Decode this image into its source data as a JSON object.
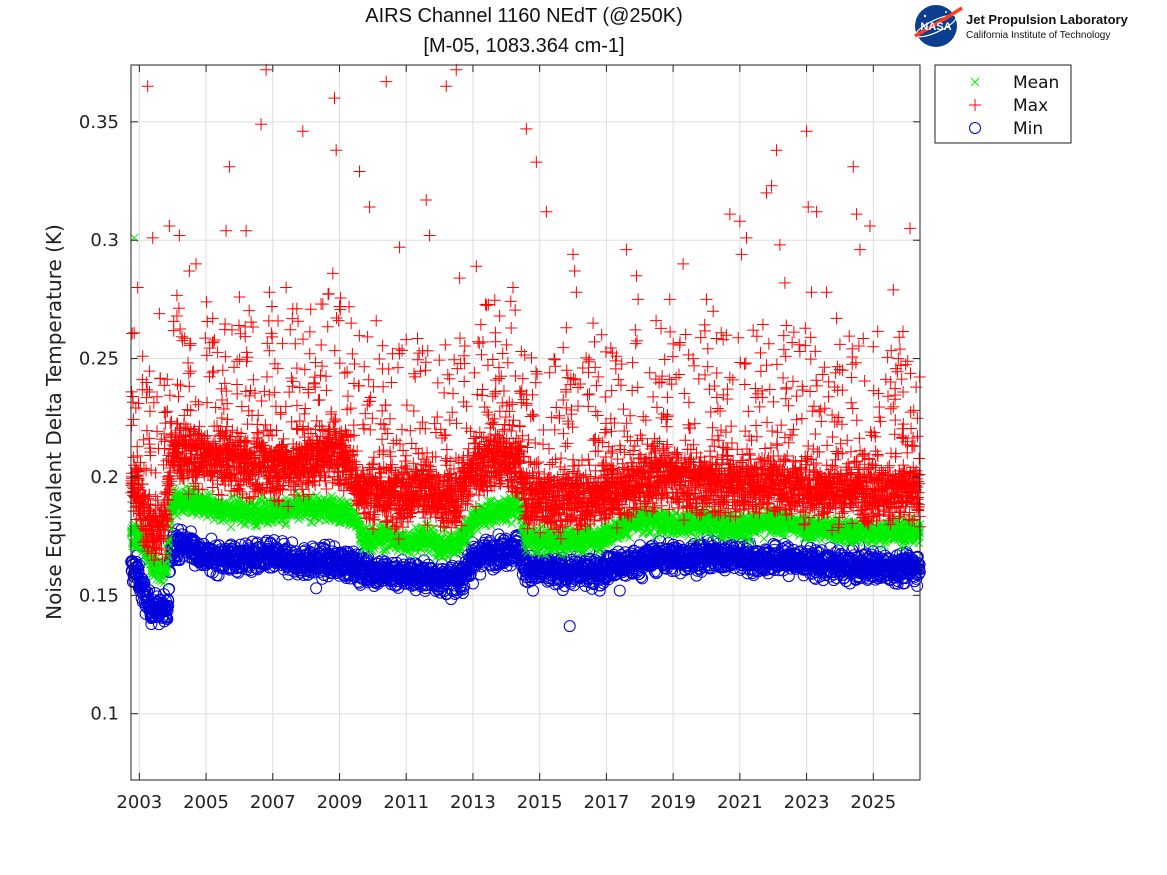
{
  "colors": {
    "mean": "#00ee00",
    "max": "#ff0000",
    "min": "#0000dd",
    "grid": "#dddddd",
    "axis": "#222222"
  },
  "logo": {
    "badge": "NASA",
    "line1": "Jet Propulsion Laboratory",
    "line2": "California Institute of Technology"
  },
  "chart_data": {
    "type": "scatter",
    "title": [
      "AIRS Channel 1160 NEdT (@250K)",
      "[M-05, 1083.364 cm-1]"
    ],
    "xlabel": "",
    "ylabel": "Noise Equivalent Delta Temperature (K)",
    "xlim": [
      2002.75,
      2026.4
    ],
    "ylim": [
      0.072,
      0.374
    ],
    "xticks": [
      2003,
      2005,
      2007,
      2009,
      2011,
      2013,
      2015,
      2017,
      2019,
      2021,
      2023,
      2025
    ],
    "xtick_labels": [
      "2003",
      "2005",
      "2007",
      "2009",
      "2011",
      "2013",
      "2015",
      "2017",
      "2019",
      "2021",
      "2023",
      "2025"
    ],
    "yticks": [
      0.1,
      0.15,
      0.2,
      0.25,
      0.3,
      0.35
    ],
    "ytick_labels": [
      "0.1",
      "0.15",
      "0.2",
      "0.25",
      "0.3",
      "0.35"
    ],
    "grid": true,
    "legend_position": "outside-top-right",
    "legend": [
      "Mean",
      "Max",
      "Min"
    ],
    "series": [
      {
        "name": "Mean",
        "marker": "x",
        "trend": [
          [
            2002.75,
            0.176
          ],
          [
            2002.95,
            0.175
          ],
          [
            2003.2,
            0.17
          ],
          [
            2003.4,
            0.162
          ],
          [
            2003.8,
            0.159
          ],
          [
            2003.95,
            0.189
          ],
          [
            2004.5,
            0.19
          ],
          [
            2005.5,
            0.186
          ],
          [
            2006.5,
            0.185
          ],
          [
            2007.5,
            0.186
          ],
          [
            2008.2,
            0.187
          ],
          [
            2008.8,
            0.186
          ],
          [
            2009.2,
            0.185
          ],
          [
            2009.5,
            0.182
          ],
          [
            2009.7,
            0.173
          ],
          [
            2010.3,
            0.175
          ],
          [
            2011.0,
            0.172
          ],
          [
            2011.5,
            0.175
          ],
          [
            2012.0,
            0.171
          ],
          [
            2012.5,
            0.171
          ],
          [
            2013.0,
            0.182
          ],
          [
            2013.5,
            0.185
          ],
          [
            2014.0,
            0.186
          ],
          [
            2014.4,
            0.188
          ],
          [
            2014.55,
            0.174
          ],
          [
            2015.0,
            0.173
          ],
          [
            2016.0,
            0.173
          ],
          [
            2017.0,
            0.175
          ],
          [
            2017.5,
            0.179
          ],
          [
            2018.0,
            0.182
          ],
          [
            2019.0,
            0.18
          ],
          [
            2020.0,
            0.181
          ],
          [
            2021.0,
            0.179
          ],
          [
            2022.0,
            0.181
          ],
          [
            2023.0,
            0.179
          ],
          [
            2024.0,
            0.177
          ],
          [
            2025.0,
            0.177
          ],
          [
            2026.4,
            0.177
          ]
        ],
        "spread": 0.0025,
        "points_per_year": 150,
        "outliers": [
          [
            2002.85,
            0.301
          ]
        ]
      },
      {
        "name": "Max",
        "marker": "+",
        "trend": [
          [
            2002.75,
            0.196
          ],
          [
            2002.95,
            0.192
          ],
          [
            2003.2,
            0.18
          ],
          [
            2003.4,
            0.176
          ],
          [
            2003.8,
            0.18
          ],
          [
            2003.95,
            0.21
          ],
          [
            2005.0,
            0.207
          ],
          [
            2006.0,
            0.205
          ],
          [
            2007.0,
            0.203
          ],
          [
            2008.0,
            0.205
          ],
          [
            2008.8,
            0.21
          ],
          [
            2009.3,
            0.206
          ],
          [
            2009.6,
            0.193
          ],
          [
            2010.2,
            0.192
          ],
          [
            2011.0,
            0.192
          ],
          [
            2011.5,
            0.196
          ],
          [
            2012.0,
            0.188
          ],
          [
            2012.5,
            0.19
          ],
          [
            2013.0,
            0.203
          ],
          [
            2013.5,
            0.207
          ],
          [
            2014.0,
            0.206
          ],
          [
            2014.4,
            0.204
          ],
          [
            2014.55,
            0.19
          ],
          [
            2015.5,
            0.19
          ],
          [
            2016.5,
            0.19
          ],
          [
            2017.5,
            0.194
          ],
          [
            2018.5,
            0.2
          ],
          [
            2019.5,
            0.198
          ],
          [
            2020.5,
            0.196
          ],
          [
            2021.5,
            0.197
          ],
          [
            2022.5,
            0.196
          ],
          [
            2023.5,
            0.194
          ],
          [
            2024.5,
            0.194
          ],
          [
            2025.5,
            0.193
          ],
          [
            2026.4,
            0.192
          ]
        ],
        "spread": 0.006,
        "points_per_year": 150,
        "scatter_points_per_year": 55,
        "outliers": [
          [
            2002.8,
            0.234
          ],
          [
            2002.95,
            0.28
          ],
          [
            2003.1,
            0.251
          ],
          [
            2003.25,
            0.365
          ],
          [
            2003.4,
            0.301
          ],
          [
            2003.6,
            0.269
          ],
          [
            2003.9,
            0.306
          ],
          [
            2004.2,
            0.302
          ],
          [
            2004.5,
            0.287
          ],
          [
            2004.7,
            0.29
          ],
          [
            2005.2,
            0.267
          ],
          [
            2005.6,
            0.304
          ],
          [
            2005.7,
            0.331
          ],
          [
            2006.0,
            0.276
          ],
          [
            2006.2,
            0.304
          ],
          [
            2006.65,
            0.349
          ],
          [
            2006.8,
            0.372
          ],
          [
            2006.9,
            0.278
          ],
          [
            2007.4,
            0.28
          ],
          [
            2007.6,
            0.271
          ],
          [
            2007.9,
            0.346
          ],
          [
            2008.5,
            0.273
          ],
          [
            2008.8,
            0.286
          ],
          [
            2008.85,
            0.36
          ],
          [
            2008.9,
            0.338
          ],
          [
            2009.0,
            0.272
          ],
          [
            2009.35,
            0.265
          ],
          [
            2009.6,
            0.329
          ],
          [
            2009.9,
            0.314
          ],
          [
            2010.1,
            0.266
          ],
          [
            2010.4,
            0.367
          ],
          [
            2010.8,
            0.297
          ],
          [
            2011.0,
            0.258
          ],
          [
            2011.6,
            0.317
          ],
          [
            2011.7,
            0.302
          ],
          [
            2012.2,
            0.365
          ],
          [
            2012.5,
            0.372
          ],
          [
            2012.6,
            0.284
          ],
          [
            2013.1,
            0.289
          ],
          [
            2013.3,
            0.257
          ],
          [
            2013.8,
            0.268
          ],
          [
            2014.2,
            0.28
          ],
          [
            2014.45,
            0.253
          ],
          [
            2014.6,
            0.347
          ],
          [
            2014.9,
            0.333
          ],
          [
            2015.2,
            0.312
          ],
          [
            2015.3,
            0.244
          ],
          [
            2015.8,
            0.263
          ],
          [
            2016.0,
            0.294
          ],
          [
            2016.05,
            0.287
          ],
          [
            2016.1,
            0.278
          ],
          [
            2016.6,
            0.265
          ],
          [
            2017.3,
            0.251
          ],
          [
            2017.6,
            0.296
          ],
          [
            2017.9,
            0.285
          ],
          [
            2017.95,
            0.275
          ],
          [
            2018.3,
            0.244
          ],
          [
            2018.9,
            0.275
          ],
          [
            2019.3,
            0.29
          ],
          [
            2019.6,
            0.25
          ],
          [
            2020.0,
            0.275
          ],
          [
            2020.2,
            0.27
          ],
          [
            2020.5,
            0.258
          ],
          [
            2020.7,
            0.311
          ],
          [
            2021.0,
            0.308
          ],
          [
            2021.05,
            0.294
          ],
          [
            2021.2,
            0.301
          ],
          [
            2021.4,
            0.262
          ],
          [
            2021.8,
            0.32
          ],
          [
            2021.95,
            0.323
          ],
          [
            2022.1,
            0.338
          ],
          [
            2022.2,
            0.298
          ],
          [
            2022.35,
            0.282
          ],
          [
            2022.8,
            0.253
          ],
          [
            2023.0,
            0.346
          ],
          [
            2023.05,
            0.314
          ],
          [
            2023.15,
            0.278
          ],
          [
            2023.3,
            0.312
          ],
          [
            2023.6,
            0.278
          ],
          [
            2023.9,
            0.267
          ],
          [
            2024.0,
            0.256
          ],
          [
            2024.35,
            0.242
          ],
          [
            2024.4,
            0.331
          ],
          [
            2024.5,
            0.311
          ],
          [
            2024.6,
            0.296
          ],
          [
            2024.9,
            0.306
          ],
          [
            2025.0,
            0.255
          ],
          [
            2025.6,
            0.279
          ],
          [
            2025.75,
            0.25
          ],
          [
            2025.8,
            0.254
          ],
          [
            2026.1,
            0.305
          ]
        ]
      },
      {
        "name": "Min",
        "marker": "o",
        "trend": [
          [
            2002.75,
            0.161
          ],
          [
            2002.95,
            0.16
          ],
          [
            2003.1,
            0.152
          ],
          [
            2003.3,
            0.145
          ],
          [
            2003.6,
            0.144
          ],
          [
            2003.85,
            0.143
          ],
          [
            2003.95,
            0.172
          ],
          [
            2004.5,
            0.171
          ],
          [
            2005.0,
            0.166
          ],
          [
            2006.0,
            0.166
          ],
          [
            2007.0,
            0.166
          ],
          [
            2008.0,
            0.164
          ],
          [
            2009.0,
            0.164
          ],
          [
            2009.5,
            0.162
          ],
          [
            2010.0,
            0.16
          ],
          [
            2011.0,
            0.159
          ],
          [
            2012.0,
            0.157
          ],
          [
            2012.5,
            0.156
          ],
          [
            2013.0,
            0.165
          ],
          [
            2013.5,
            0.168
          ],
          [
            2014.0,
            0.169
          ],
          [
            2014.4,
            0.171
          ],
          [
            2014.55,
            0.161
          ],
          [
            2015.5,
            0.16
          ],
          [
            2016.5,
            0.16
          ],
          [
            2017.5,
            0.163
          ],
          [
            2018.5,
            0.166
          ],
          [
            2019.5,
            0.166
          ],
          [
            2020.5,
            0.167
          ],
          [
            2021.5,
            0.165
          ],
          [
            2022.5,
            0.165
          ],
          [
            2023.5,
            0.163
          ],
          [
            2024.5,
            0.162
          ],
          [
            2025.5,
            0.162
          ],
          [
            2026.4,
            0.162
          ]
        ],
        "spread": 0.003,
        "points_per_year": 120,
        "outliers": [
          [
            2003.75,
            0.139
          ],
          [
            2003.8,
            0.141
          ],
          [
            2015.9,
            0.137
          ],
          [
            2016.8,
            0.152
          ],
          [
            2017.4,
            0.152
          ],
          [
            2014.8,
            0.152
          ],
          [
            2013.0,
            0.155
          ],
          [
            2012.7,
            0.151
          ],
          [
            2008.3,
            0.153
          ],
          [
            2024.3,
            0.155
          ],
          [
            2025.9,
            0.155
          ]
        ]
      }
    ]
  }
}
